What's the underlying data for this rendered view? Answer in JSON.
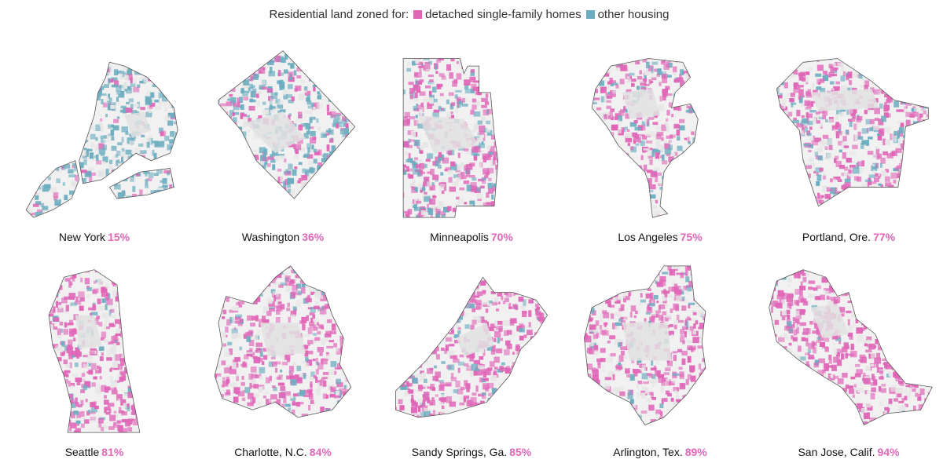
{
  "legend": {
    "title": "Residential land zoned for:",
    "items": [
      {
        "label": "detached single-family homes",
        "color": "#e066b8"
      },
      {
        "label": "other housing",
        "color": "#6cadc0"
      }
    ]
  },
  "colors": {
    "single_family": "#e066b8",
    "other": "#6cadc0",
    "outline": "#555555",
    "nonres": "#e3e3e3"
  },
  "cities": [
    {
      "name": "New York",
      "pct": "15%",
      "share": 0.15,
      "icon": "new-york-map"
    },
    {
      "name": "Washington",
      "pct": "36%",
      "share": 0.36,
      "icon": "washington-map"
    },
    {
      "name": "Minneapolis",
      "pct": "70%",
      "share": 0.7,
      "icon": "minneapolis-map"
    },
    {
      "name": "Los Angeles",
      "pct": "75%",
      "share": 0.75,
      "icon": "los-angeles-map"
    },
    {
      "name": "Portland, Ore.",
      "pct": "77%",
      "share": 0.77,
      "icon": "portland-map"
    },
    {
      "name": "Seattle",
      "pct": "81%",
      "share": 0.81,
      "icon": "seattle-map"
    },
    {
      "name": "Charlotte, N.C.",
      "pct": "84%",
      "share": 0.84,
      "icon": "charlotte-map"
    },
    {
      "name": "Sandy Springs, Ga.",
      "pct": "85%",
      "share": 0.85,
      "icon": "sandy-springs-map"
    },
    {
      "name": "Arlington, Tex.",
      "pct": "89%",
      "share": 0.89,
      "icon": "arlington-map"
    },
    {
      "name": "San Jose, Calif.",
      "pct": "94%",
      "share": 0.94,
      "icon": "san-jose-map"
    }
  ]
}
